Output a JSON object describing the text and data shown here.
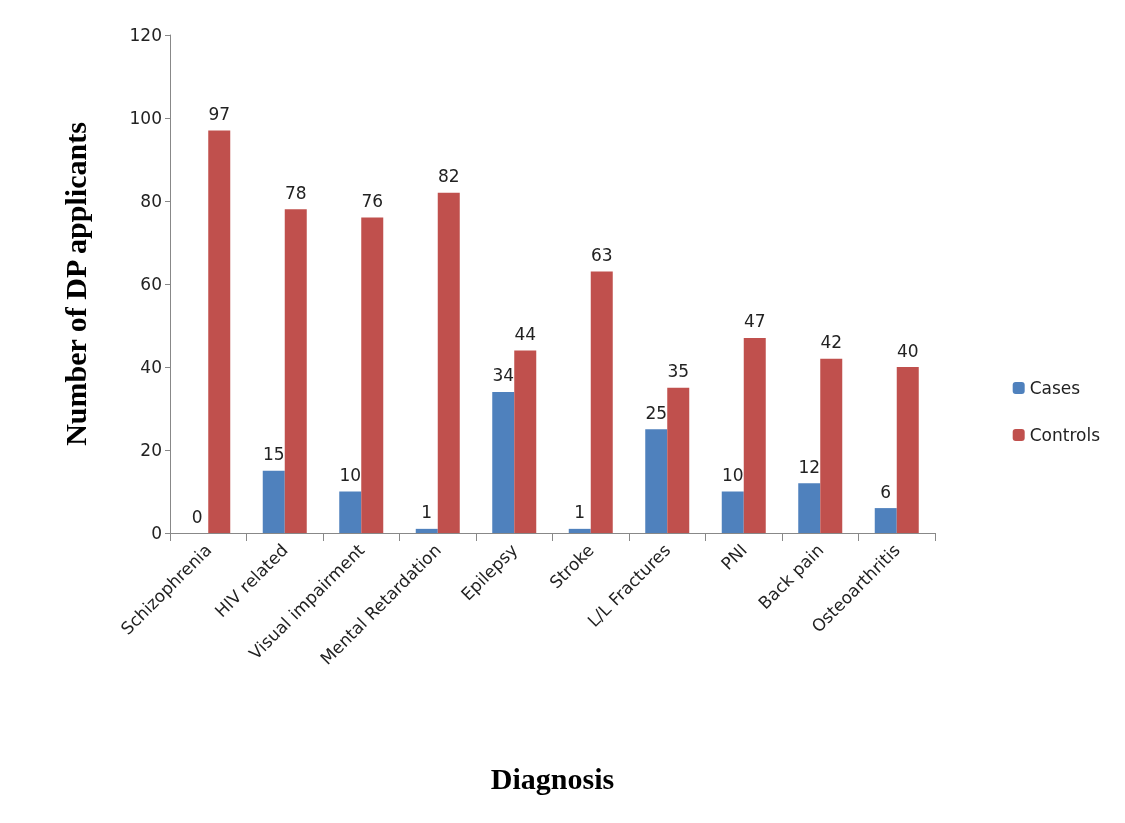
{
  "chart_data": {
    "type": "bar",
    "xlabel": "Diagnosis",
    "ylabel": "Number of DP applicants",
    "categories": [
      "Schizophrenia",
      "HIV related",
      "Visual impairment",
      "Mental Retardation",
      "Epilepsy",
      "Stroke",
      "L/L Fractures",
      "PNI",
      "Back pain",
      "Osteoarthritis"
    ],
    "series": [
      {
        "name": "Cases",
        "color": "#4f81bd",
        "values": [
          0,
          15,
          10,
          1,
          34,
          1,
          25,
          10,
          12,
          6
        ]
      },
      {
        "name": "Controls",
        "color": "#c0504d",
        "values": [
          97,
          78,
          76,
          82,
          44,
          63,
          35,
          47,
          42,
          40
        ]
      }
    ],
    "ylim": [
      0,
      120
    ],
    "yticks": [
      0,
      20,
      40,
      60,
      80,
      100,
      120
    ],
    "grid": false,
    "legend": "right",
    "data_labels": true
  }
}
